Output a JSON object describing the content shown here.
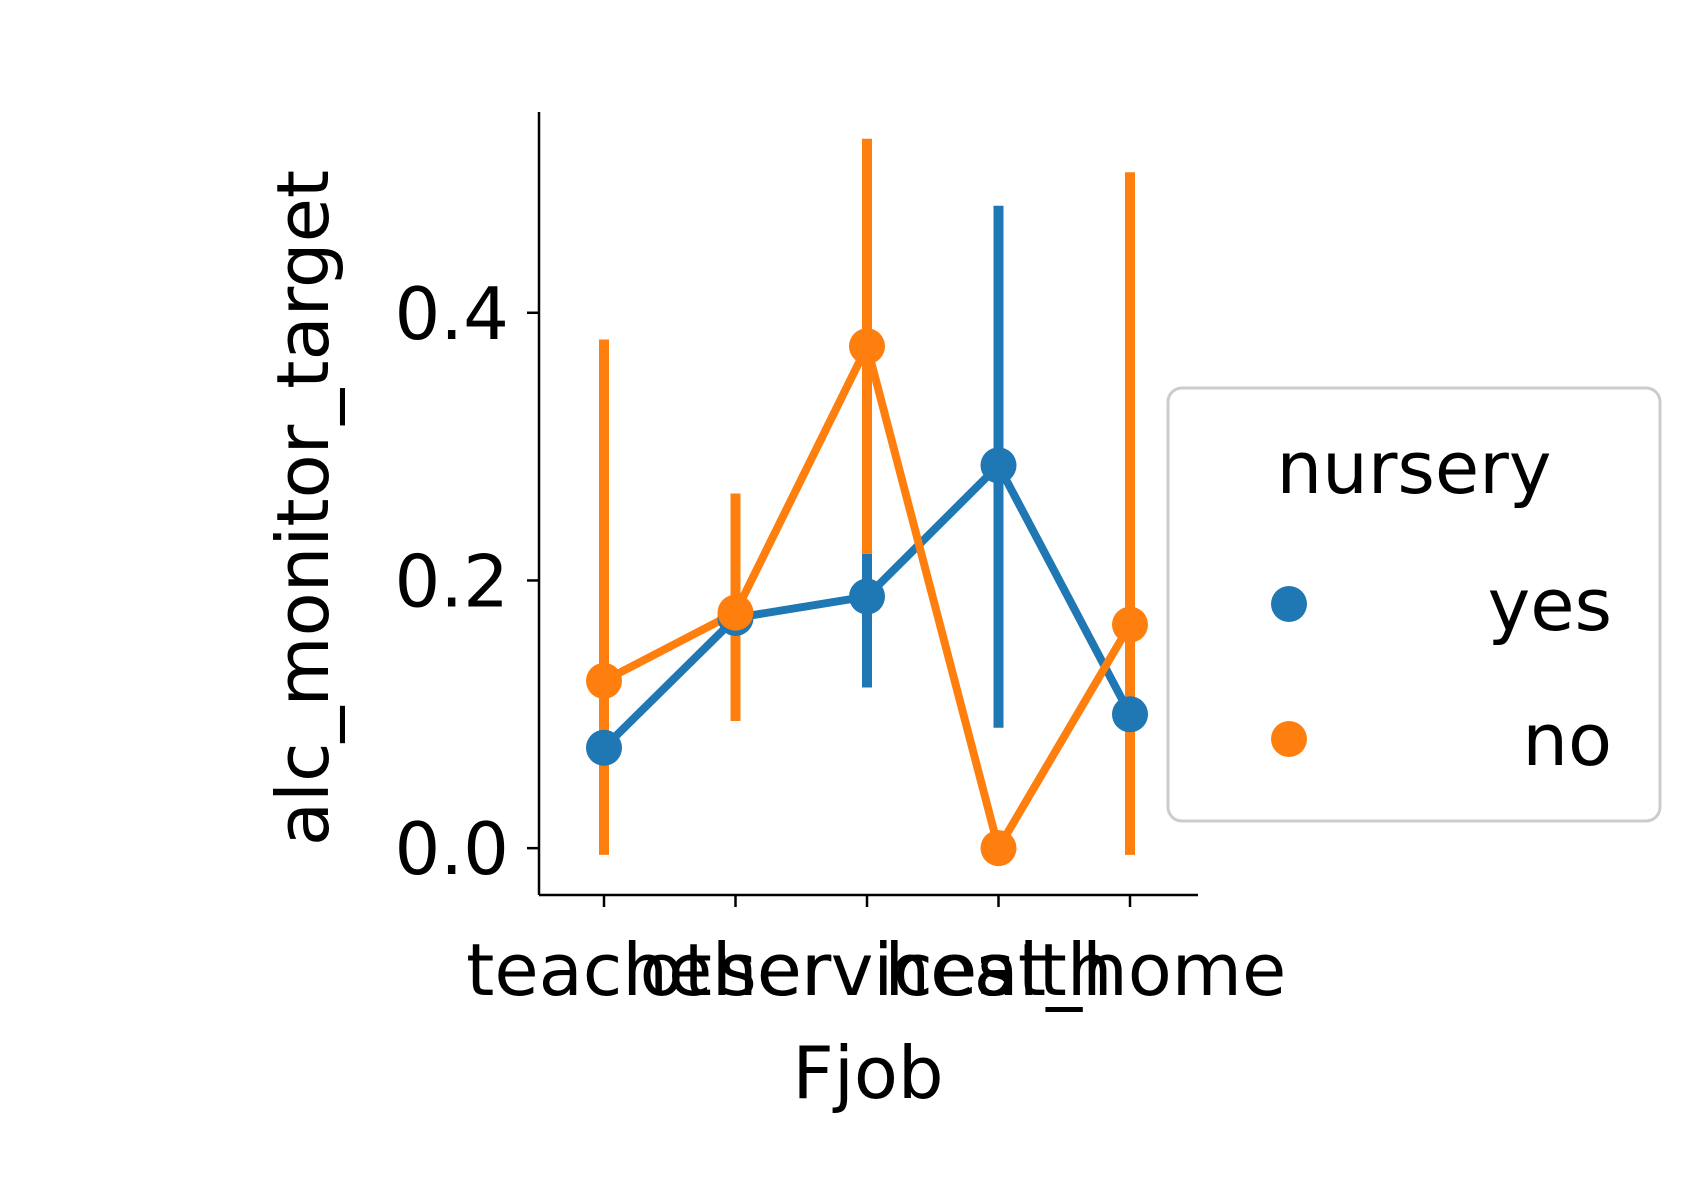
{
  "chart_data": {
    "type": "point",
    "xlabel": "Fjob",
    "ylabel": "alc_monitor_target",
    "categories": [
      "teacher",
      "other",
      "services",
      "health",
      "at_home"
    ],
    "ylim": [
      -0.035,
      0.55
    ],
    "yticks": [
      0.0,
      0.2,
      0.4
    ],
    "ytick_labels": [
      "0.0",
      "0.2",
      "0.4"
    ],
    "grid": false,
    "legend": {
      "title": "nursery",
      "placement": "center-right, outside plot"
    },
    "series": [
      {
        "name": "yes",
        "color": "#1f77b4",
        "values": [
          0.075,
          0.172,
          0.188,
          0.286,
          0.1
        ],
        "ci_low": [
          0.0,
          0.1,
          0.12,
          0.09,
          0.0
        ],
        "ci_high": [
          0.18,
          0.22,
          0.22,
          0.48,
          0.2
        ]
      },
      {
        "name": "no",
        "color": "#ff7f0e",
        "values": [
          0.125,
          0.176,
          0.375,
          0.0,
          0.167
        ],
        "ci_low": [
          -0.005,
          0.095,
          0.22,
          0.0,
          -0.005
        ],
        "ci_high": [
          0.38,
          0.265,
          0.53,
          0.0,
          0.505
        ]
      }
    ]
  }
}
